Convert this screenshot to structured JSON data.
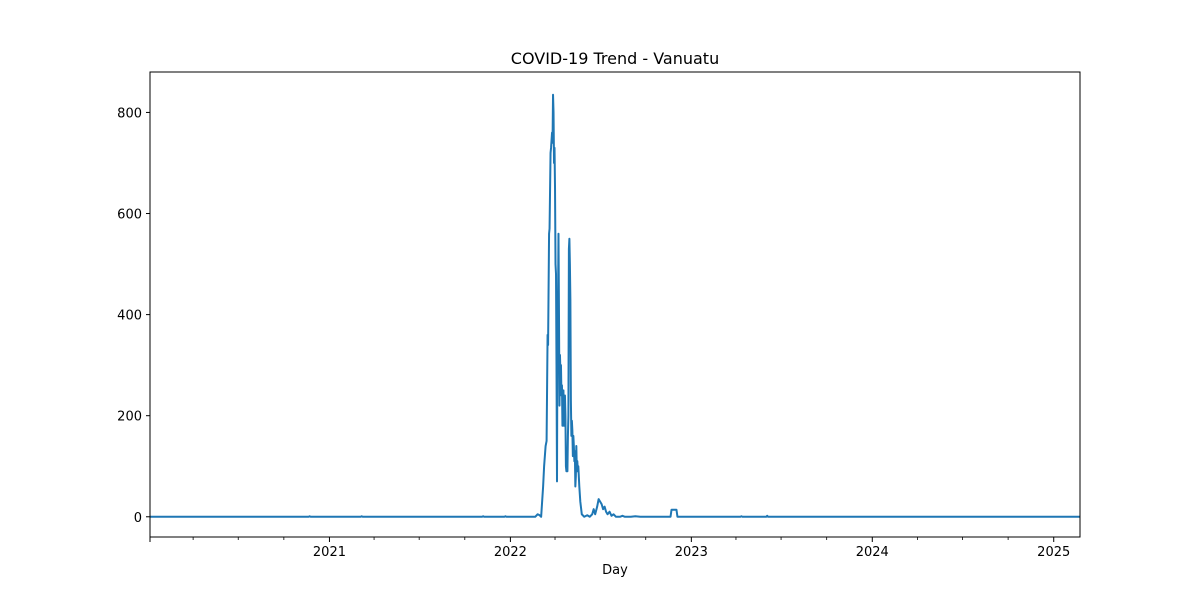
{
  "chart_data": {
    "type": "line",
    "title": "COVID-19 Trend - Vanuatu",
    "xlabel": "Day",
    "ylabel": "",
    "x_type": "date",
    "xlim": [
      "2020-01-05",
      "2025-02-23"
    ],
    "ylim": [
      -40,
      880
    ],
    "grid": false,
    "legend": "none",
    "line_color": "#1f77b4",
    "x_major_ticks": [
      {
        "date": "2021-01-01",
        "label": "2021"
      },
      {
        "date": "2022-01-01",
        "label": "2022"
      },
      {
        "date": "2023-01-01",
        "label": "2023"
      },
      {
        "date": "2024-01-01",
        "label": "2024"
      },
      {
        "date": "2025-01-01",
        "label": "2025"
      }
    ],
    "x_minor_ticks": [
      "2020-04-01",
      "2020-07-01",
      "2020-10-01",
      "2021-04-01",
      "2021-07-01",
      "2021-10-01",
      "2022-04-01",
      "2022-07-01",
      "2022-10-01",
      "2023-04-01",
      "2023-07-01",
      "2023-10-01",
      "2024-04-01",
      "2024-07-01",
      "2024-10-01"
    ],
    "y_ticks": [
      0,
      200,
      400,
      600,
      800
    ],
    "series": [
      {
        "points": [
          [
            "2020-01-05",
            0
          ],
          [
            "2020-11-20",
            0
          ],
          [
            "2020-11-22",
            1
          ],
          [
            "2020-11-24",
            0
          ],
          [
            "2021-03-05",
            0
          ],
          [
            "2021-03-07",
            1
          ],
          [
            "2021-03-09",
            0
          ],
          [
            "2021-11-05",
            0
          ],
          [
            "2021-11-07",
            1
          ],
          [
            "2021-11-09",
            0
          ],
          [
            "2021-12-20",
            0
          ],
          [
            "2021-12-22",
            1
          ],
          [
            "2021-12-24",
            0
          ],
          [
            "2022-02-20",
            0
          ],
          [
            "2022-02-25",
            5
          ],
          [
            "2022-03-01",
            3
          ],
          [
            "2022-03-04",
            0
          ],
          [
            "2022-03-08",
            60
          ],
          [
            "2022-03-10",
            100
          ],
          [
            "2022-03-13",
            140
          ],
          [
            "2022-03-15",
            150
          ],
          [
            "2022-03-17",
            360
          ],
          [
            "2022-03-18",
            340
          ],
          [
            "2022-03-20",
            560
          ],
          [
            "2022-03-21",
            570
          ],
          [
            "2022-03-23",
            720
          ],
          [
            "2022-03-24",
            730
          ],
          [
            "2022-03-26",
            760
          ],
          [
            "2022-03-27",
            740
          ],
          [
            "2022-03-28",
            835
          ],
          [
            "2022-03-29",
            800
          ],
          [
            "2022-03-30",
            700
          ],
          [
            "2022-03-31",
            730
          ],
          [
            "2022-04-01",
            650
          ],
          [
            "2022-04-02",
            500
          ],
          [
            "2022-04-03",
            480
          ],
          [
            "2022-04-04",
            300
          ],
          [
            "2022-04-05",
            70
          ],
          [
            "2022-04-06",
            420
          ],
          [
            "2022-04-07",
            410
          ],
          [
            "2022-04-08",
            560
          ],
          [
            "2022-04-09",
            400
          ],
          [
            "2022-04-10",
            220
          ],
          [
            "2022-04-11",
            320
          ],
          [
            "2022-04-12",
            280
          ],
          [
            "2022-04-13",
            300
          ],
          [
            "2022-04-14",
            240
          ],
          [
            "2022-04-15",
            260
          ],
          [
            "2022-04-16",
            180
          ],
          [
            "2022-04-17",
            210
          ],
          [
            "2022-04-18",
            250
          ],
          [
            "2022-04-19",
            180
          ],
          [
            "2022-04-20",
            210
          ],
          [
            "2022-04-21",
            240
          ],
          [
            "2022-04-22",
            200
          ],
          [
            "2022-04-23",
            100
          ],
          [
            "2022-04-24",
            90
          ],
          [
            "2022-04-25",
            110
          ],
          [
            "2022-04-26",
            90
          ],
          [
            "2022-04-27",
            160
          ],
          [
            "2022-04-28",
            200
          ],
          [
            "2022-04-29",
            530
          ],
          [
            "2022-04-30",
            550
          ],
          [
            "2022-05-01",
            500
          ],
          [
            "2022-05-02",
            430
          ],
          [
            "2022-05-03",
            230
          ],
          [
            "2022-05-04",
            160
          ],
          [
            "2022-05-05",
            190
          ],
          [
            "2022-05-06",
            170
          ],
          [
            "2022-05-07",
            120
          ],
          [
            "2022-05-08",
            160
          ],
          [
            "2022-05-09",
            140
          ],
          [
            "2022-05-10",
            110
          ],
          [
            "2022-05-11",
            130
          ],
          [
            "2022-05-12",
            60
          ],
          [
            "2022-05-13",
            80
          ],
          [
            "2022-05-14",
            140
          ],
          [
            "2022-05-15",
            90
          ],
          [
            "2022-05-16",
            110
          ],
          [
            "2022-05-17",
            90
          ],
          [
            "2022-05-18",
            100
          ],
          [
            "2022-05-20",
            60
          ],
          [
            "2022-05-22",
            30
          ],
          [
            "2022-05-25",
            5
          ],
          [
            "2022-05-30",
            0
          ],
          [
            "2022-06-05",
            3
          ],
          [
            "2022-06-10",
            0
          ],
          [
            "2022-06-15",
            5
          ],
          [
            "2022-06-18",
            15
          ],
          [
            "2022-06-21",
            5
          ],
          [
            "2022-06-25",
            20
          ],
          [
            "2022-06-28",
            35
          ],
          [
            "2022-07-01",
            30
          ],
          [
            "2022-07-04",
            25
          ],
          [
            "2022-07-07",
            15
          ],
          [
            "2022-07-10",
            20
          ],
          [
            "2022-07-13",
            10
          ],
          [
            "2022-07-16",
            5
          ],
          [
            "2022-07-20",
            10
          ],
          [
            "2022-07-24",
            2
          ],
          [
            "2022-07-28",
            5
          ],
          [
            "2022-08-02",
            0
          ],
          [
            "2022-08-10",
            0
          ],
          [
            "2022-08-15",
            2
          ],
          [
            "2022-08-20",
            0
          ],
          [
            "2022-09-01",
            0
          ],
          [
            "2022-09-10",
            1
          ],
          [
            "2022-09-20",
            0
          ],
          [
            "2022-11-20",
            0
          ],
          [
            "2022-11-22",
            14
          ],
          [
            "2022-12-02",
            14
          ],
          [
            "2022-12-04",
            0
          ],
          [
            "2023-04-10",
            0
          ],
          [
            "2023-04-12",
            1
          ],
          [
            "2023-04-14",
            0
          ],
          [
            "2023-06-01",
            0
          ],
          [
            "2023-06-03",
            2
          ],
          [
            "2023-06-05",
            0
          ],
          [
            "2025-02-23",
            0
          ]
        ]
      }
    ]
  }
}
